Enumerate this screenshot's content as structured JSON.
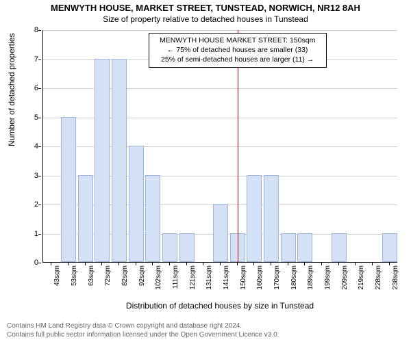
{
  "title_main": "MENWYTH HOUSE, MARKET STREET, TUNSTEAD, NORWICH, NR12 8AH",
  "title_sub": "Size of property relative to detached houses in Tunstead",
  "y_label": "Number of detached properties",
  "x_label": "Distribution of detached houses by size in Tunstead",
  "footer_line1": "Contains HM Land Registry data © Crown copyright and database right 2024.",
  "footer_line2": "Contains full public sector information licensed under the Open Government Licence v3.0.",
  "annotation": {
    "line1": "MENWYTH HOUSE MARKET STREET: 150sqm",
    "line2": "← 75% of detached houses are smaller (33)",
    "line3": "25% of semi-detached houses are larger (11) →",
    "ref_x_index": 11
  },
  "chart": {
    "type": "bar",
    "ylim": [
      0,
      8
    ],
    "ytick_step": 1,
    "bar_fill": "#d4e0f4",
    "bar_stroke": "#9bb7e0",
    "grid_color": "#cccccc",
    "ref_line_color": "#cc0000",
    "background": "#ffffff",
    "categories": [
      "43sqm",
      "53sqm",
      "63sqm",
      "72sqm",
      "82sqm",
      "92sqm",
      "102sqm",
      "111sqm",
      "121sqm",
      "131sqm",
      "141sqm",
      "150sqm",
      "160sqm",
      "170sqm",
      "180sqm",
      "189sqm",
      "199sqm",
      "209sqm",
      "219sqm",
      "228sqm",
      "238sqm"
    ],
    "values": [
      0,
      5,
      3,
      7,
      7,
      4,
      3,
      1,
      1,
      0,
      2,
      1,
      3,
      3,
      1,
      1,
      0,
      1,
      0,
      0,
      1
    ],
    "title_fontsize": 13,
    "sub_fontsize": 12,
    "label_fontsize": 12,
    "tick_fontsize": 11
  }
}
